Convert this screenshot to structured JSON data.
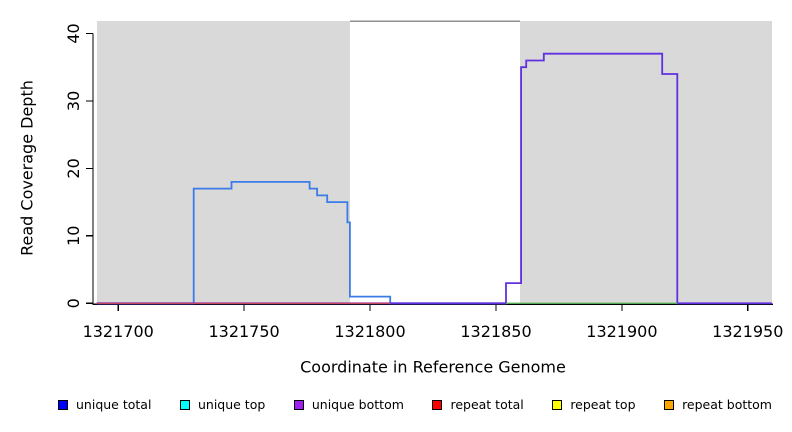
{
  "chart_data": {
    "type": "line",
    "step": true,
    "title": "",
    "xlabel": "Coordinate in Reference Genome",
    "ylabel": "Read Coverage Depth",
    "xlim": [
      1321690,
      1321960
    ],
    "ylim": [
      0,
      41.85
    ],
    "xticks": [
      1321700,
      1321750,
      1321800,
      1321850,
      1321900,
      1321950
    ],
    "yticks": [
      0,
      10,
      20,
      30,
      40
    ],
    "grid": false,
    "legend_position": "bottom",
    "shade_color": "#D9D9D9",
    "shaded_regions": [
      [
        1321691.5,
        1321792
      ],
      [
        1321859.5,
        1321959.5
      ]
    ],
    "gap_top_border": {
      "from": 1321792,
      "to": 1321859.5,
      "color": "#8F8F8F"
    },
    "series": [
      {
        "key": "unique-total",
        "color": "#3B7CE8",
        "width": 1.8,
        "points": [
          [
            1321691.5,
            0
          ],
          [
            1321730,
            0
          ],
          [
            1321730,
            17
          ],
          [
            1321745,
            17
          ],
          [
            1321745,
            18
          ],
          [
            1321776,
            18
          ],
          [
            1321776,
            17
          ],
          [
            1321779,
            17
          ],
          [
            1321779,
            16
          ],
          [
            1321783,
            16
          ],
          [
            1321783,
            15
          ],
          [
            1321791,
            15
          ],
          [
            1321791,
            12
          ],
          [
            1321792,
            12
          ],
          [
            1321792,
            1
          ],
          [
            1321808,
            1
          ],
          [
            1321808,
            0
          ],
          [
            1321854,
            0
          ]
        ]
      },
      {
        "key": "unique-bottom",
        "color": "#6130E0",
        "width": 1.8,
        "points": [
          [
            1321691.5,
            0
          ],
          [
            1321854,
            0
          ],
          [
            1321854,
            3
          ],
          [
            1321860,
            3
          ],
          [
            1321860,
            35
          ],
          [
            1321862,
            35
          ],
          [
            1321862,
            36
          ],
          [
            1321869,
            36
          ],
          [
            1321869,
            37
          ],
          [
            1321916,
            37
          ],
          [
            1321916,
            34
          ],
          [
            1321922,
            34
          ],
          [
            1321922,
            0
          ],
          [
            1321959.5,
            0
          ]
        ]
      },
      {
        "key": "repeat-baseline",
        "color": "#C84560",
        "width": 1.4,
        "points": [
          [
            1321691.5,
            0
          ],
          [
            1321808,
            0
          ]
        ]
      },
      {
        "key": "overlap-baseline-green",
        "color": "#55AA55",
        "width": 1.4,
        "points": [
          [
            1321854,
            0
          ],
          [
            1321922,
            0
          ]
        ]
      }
    ]
  },
  "legend": {
    "items": [
      {
        "label": "unique total",
        "color": "#0000FF"
      },
      {
        "label": "unique top",
        "color": "#00FFFF"
      },
      {
        "label": "unique bottom",
        "color": "#A020F0"
      },
      {
        "label": "repeat total",
        "color": "#FF0000"
      },
      {
        "label": "repeat top",
        "color": "#FFFF00"
      },
      {
        "label": "repeat bottom",
        "color": "#FFA500"
      }
    ]
  }
}
